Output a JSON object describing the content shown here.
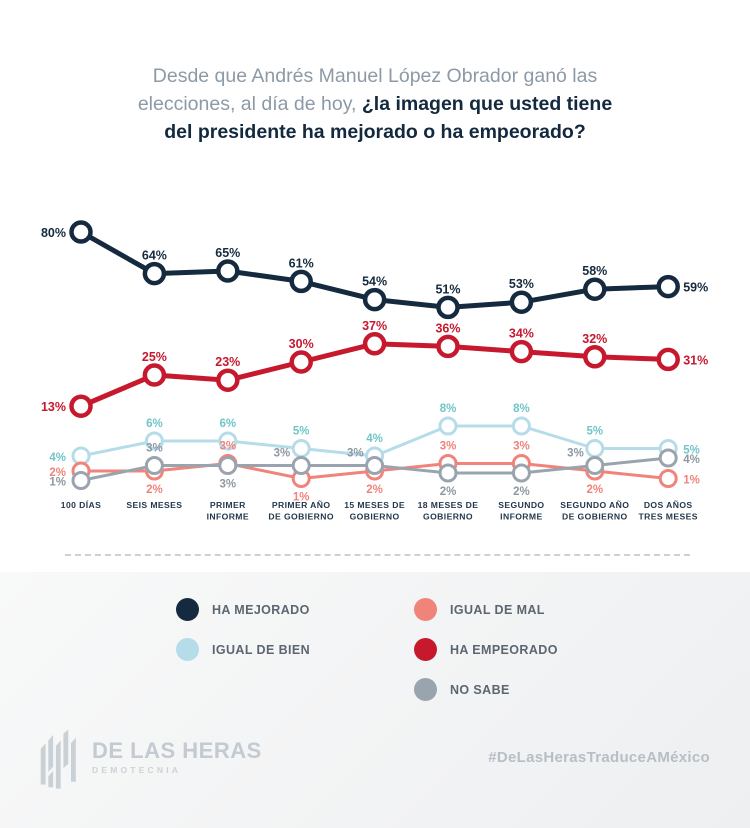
{
  "title": {
    "line1": "Desde que Andrés Manuel López Obrador ganó las",
    "line2_regular": "elecciones, al día de hoy, ",
    "line2_bold": "¿la imagen que usted tiene",
    "line3_bold": "del presidente ha mejorado o ha empeorado?"
  },
  "chart_data": {
    "type": "line",
    "title": "Desde que Andrés Manuel López Obrador ganó las elecciones, al día de hoy, ¿la imagen que usted tiene del presidente ha mejorado o ha empeorado?",
    "unit": "%",
    "ylim": [
      0,
      85
    ],
    "grid": false,
    "legend_position": "bottom",
    "categories": [
      [
        "100 DÍAS"
      ],
      [
        "SEIS MESES"
      ],
      [
        "PRIMER",
        "INFORME"
      ],
      [
        "PRIMER AÑO",
        "DE GOBIERNO"
      ],
      [
        "15 MESES DE",
        "GOBIERNO"
      ],
      [
        "18 MESES DE",
        "GOBIERNO"
      ],
      [
        "SEGUNDO",
        "INFORME"
      ],
      [
        "SEGUNDO AÑO",
        "DE GOBIERNO"
      ],
      [
        "DOS AÑOS",
        "TRES MESES"
      ]
    ],
    "series": [
      {
        "name": "HA MEJORADO",
        "color": "#152a3e",
        "label_color": "#152a3e",
        "values": [
          80,
          64,
          65,
          61,
          54,
          51,
          53,
          58,
          59
        ]
      },
      {
        "name": "HA EMPEORADO",
        "color": "#c6192e",
        "label_color": "#c6192e",
        "values": [
          13,
          25,
          23,
          30,
          37,
          36,
          34,
          32,
          31
        ]
      },
      {
        "name": "IGUAL DE BIEN",
        "color": "#b5dce8",
        "label_color": "#6fc5c9",
        "values": [
          4,
          6,
          6,
          5,
          4,
          8,
          8,
          5,
          5
        ]
      },
      {
        "name": "IGUAL DE MAL",
        "color": "#f0837a",
        "label_color": "#f0837a",
        "values": [
          2,
          2,
          3,
          1,
          2,
          3,
          3,
          2,
          1
        ]
      },
      {
        "name": "NO SABE",
        "color": "#9aa4ae",
        "label_color": "#8d98a2",
        "values": [
          1,
          3,
          3,
          3,
          3,
          2,
          2,
          3,
          4
        ]
      }
    ]
  },
  "legend": {
    "columns": [
      [
        {
          "label": "HA MEJORADO",
          "color": "#152a3e"
        },
        {
          "label": "IGUAL DE BIEN",
          "color": "#b5dce8"
        }
      ],
      [
        {
          "label": "IGUAL DE MAL",
          "color": "#f0837a"
        },
        {
          "label": "HA EMPEORADO",
          "color": "#c6192e"
        },
        {
          "label": "NO SABE",
          "color": "#9aa4ae"
        }
      ]
    ]
  },
  "footer": {
    "brand": "DE LAS HERAS",
    "brand_sub": "DEMOTECNIA",
    "hashtag": "#DeLasHerasTraduceAMéxico"
  }
}
